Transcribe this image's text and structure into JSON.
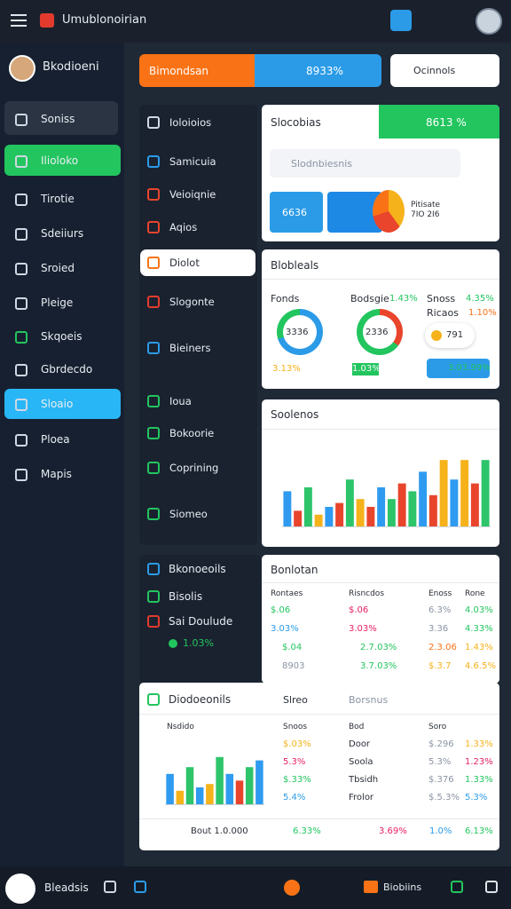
{
  "topbar": {
    "title": "Umublonoirian"
  },
  "sidebar": {
    "user": "Bkodioeni",
    "items": [
      "Soniss",
      "Ilioloko",
      "Tirotie",
      "Sdeiiurs",
      "Sroied",
      "Pleige",
      "Skqoeis",
      "Gbrdecdo",
      "Sloaio",
      "Ploea",
      "Mapis"
    ]
  },
  "searchbar": {
    "primary": "Bimondsan",
    "value": "8933%",
    "secondary": "Ocinnols"
  },
  "nav": {
    "items": [
      "Ioloioios",
      "Samicuia",
      "Veioiqnie",
      "Aqios",
      "Diolot",
      "Slogonte",
      "Bieiners",
      "Ioua",
      "Bokoorie",
      "Coprining",
      "Siomeo"
    ]
  },
  "nav_footer": {
    "title": "Bkonoeoils",
    "item": "Bisolis",
    "sub": "Sai Doulude",
    "value": "1.03%"
  },
  "overview": {
    "title": "Slocobias",
    "value": "8613 %",
    "search": "Slodnbiesnis",
    "tile": "6636",
    "note": "Pitisate 7IO 2I6"
  },
  "stats": {
    "title": "Blobleals",
    "rings": [
      {
        "label": "Fonds",
        "value": "3336",
        "caption": "3.13%"
      },
      {
        "label": "Bodsgie",
        "change": "1.43%",
        "value": "2336",
        "caption": "1.03%"
      }
    ],
    "side": {
      "label": "Snoss",
      "change": "4.35%",
      "label2": "Ricaos",
      "change2": "1.10%",
      "value": "791",
      "badge": "3.03.99%"
    }
  },
  "sales": {
    "title": "Soolenos",
    "ylim": [
      0,
      100
    ],
    "values": [
      45,
      20,
      50,
      15,
      25,
      30,
      60,
      35,
      25,
      50,
      35,
      55,
      45,
      70,
      40,
      85,
      60,
      85,
      55,
      85
    ],
    "colors": [
      "#2e9bf0",
      "#e8452c",
      "#2ec46a",
      "#f5b21a",
      "#2e9bf0",
      "#e8452c",
      "#2ec46a",
      "#f5b21a",
      "#e8452c",
      "#2e9bf0",
      "#2ec46a",
      "#e8452c",
      "#2ec46a",
      "#2e9bf0",
      "#e8452c",
      "#f5b21a",
      "#2e9bf0",
      "#f5b21a",
      "#e8452c",
      "#2ec46a"
    ]
  },
  "table": {
    "title": "Bonlotan",
    "columns": [
      "Rontaes",
      "Risncdos",
      "Enoss",
      "Rone"
    ],
    "rows": [
      [
        "$.06",
        "$.06",
        "6.3%",
        "4.03%"
      ],
      [
        "3.03%",
        "3.03%",
        "3.36",
        "4.33%"
      ],
      [
        "$.04",
        "2.7.03%",
        "2.3.06",
        "1.43%"
      ],
      [
        "8903",
        "3.7.03%",
        "$.3.7",
        "4.6.5%"
      ]
    ]
  },
  "detail": {
    "title": "Diodoeonils",
    "tab1": "Slreo",
    "tab2": "Borsnus",
    "chart_title": "Nsdido",
    "ylim": [
      0,
      100
    ],
    "values": [
      45,
      20,
      55,
      25,
      30,
      70,
      45,
      35,
      55,
      65
    ],
    "colors": [
      "#2e9bf0",
      "#f5b21a",
      "#2ec46a",
      "#2e9bf0",
      "#f5b21a",
      "#2ec46a",
      "#2e9bf0",
      "#e8452c",
      "#2ec46a",
      "#2e9bf0"
    ],
    "columns": [
      "Snoos",
      "Bod",
      "Soro"
    ],
    "rows": [
      [
        "$.03%",
        "Door",
        "$.296",
        "1.33%"
      ],
      [
        "5.3%",
        "Soola",
        "5.3%",
        "1.23%"
      ],
      [
        "$.33%",
        "Tbsidh",
        "$.376",
        "1.33%"
      ],
      [
        "5.4%",
        "Frolor",
        "$.5.3%",
        "5.3%"
      ]
    ],
    "footer": [
      "Bout 1.0.000",
      "6.33%",
      "3.69%",
      "1.0%",
      "6.13%"
    ]
  },
  "bottombar": {
    "left": "Bleadsis",
    "right": "Biobiins"
  }
}
